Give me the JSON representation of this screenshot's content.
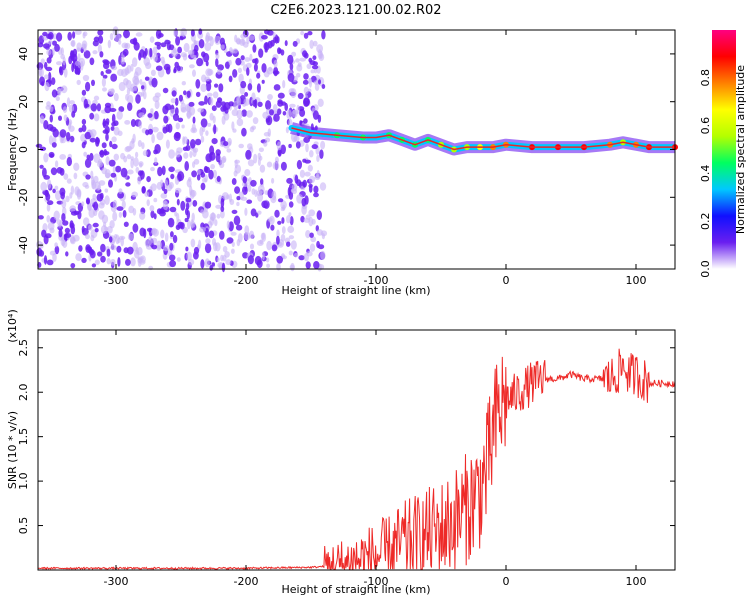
{
  "title": "C2E6.2023.121.00.02.R02",
  "colors": {
    "snr_line": "#ee2a28",
    "spectral_ridge": "#e8262a",
    "dots": "#6a1ff0",
    "dots_light": "#c8b2f6",
    "frame": "#000000"
  },
  "colorbar": {
    "label": "Normalized spectral amplitude",
    "ticks": [
      "0.0",
      "0.2",
      "0.4",
      "0.6",
      "0.8"
    ],
    "tick_values": [
      0.0,
      0.2,
      0.4,
      0.6,
      0.8
    ],
    "range": [
      0,
      1
    ],
    "colormap": [
      "#ffffff",
      "#6a1ff0",
      "#1010ff",
      "#00c8ff",
      "#00ff60",
      "#b4ff00",
      "#ffff00",
      "#ff8000",
      "#ff0000",
      "#ff0080"
    ]
  },
  "chart_data": [
    {
      "type": "heatmap",
      "title": "C2E6.2023.121.00.02.R02",
      "xlabel": "Height of straight line (km)",
      "ylabel": "Frequency (Hz)",
      "xlim": [
        -360,
        130
      ],
      "ylim": [
        -50,
        50
      ],
      "xticks": [
        -300,
        -200,
        -100,
        0,
        100
      ],
      "xtick_labels": [
        "-300",
        "-200",
        "-100",
        "0",
        "100"
      ],
      "yticks": [
        -40,
        -20,
        0,
        20,
        40
      ],
      "ytick_labels": [
        "-40",
        "-20",
        "0",
        "20",
        "40"
      ],
      "noise_region_x": [
        -360,
        -150
      ],
      "ridge": {
        "x": [
          -165,
          -150,
          -130,
          -110,
          -100,
          -90,
          -80,
          -70,
          -60,
          -50,
          -40,
          -30,
          -20,
          -10,
          0,
          20,
          40,
          60,
          80,
          90,
          100,
          110,
          130
        ],
        "y": [
          9,
          7,
          6,
          5,
          5,
          6,
          4,
          2,
          4,
          2,
          0,
          1,
          1,
          1,
          2,
          1,
          1,
          1,
          2,
          3,
          2,
          1,
          1
        ],
        "amplitude": [
          0.3,
          0.35,
          0.4,
          0.4,
          0.35,
          0.4,
          0.45,
          0.4,
          0.45,
          0.5,
          0.55,
          0.6,
          0.7,
          0.75,
          0.8,
          0.9,
          0.9,
          0.9,
          0.75,
          0.6,
          0.8,
          0.85,
          0.85
        ]
      },
      "grid": false
    },
    {
      "type": "line",
      "xlabel": "Height of straight line (km)",
      "ylabel": "SNR (10 * v/v)",
      "y_multiplier": "(x10⁴)",
      "xlim": [
        -360,
        130
      ],
      "ylim": [
        0,
        2.7
      ],
      "xticks": [
        -300,
        -200,
        -100,
        0,
        100
      ],
      "xtick_labels": [
        "-300",
        "-200",
        "-100",
        "0",
        "100"
      ],
      "yticks": [
        0.5,
        1.0,
        1.5,
        2.0,
        2.5
      ],
      "ytick_labels": [
        "0.5",
        "1.0",
        "1.5",
        "2.0",
        "2.5"
      ],
      "series": [
        {
          "x": [
            -360,
            -300,
            -250,
            -200,
            -150,
            -130,
            -120,
            -110,
            -100,
            -90,
            -80,
            -70,
            -60,
            -50,
            -40,
            -30,
            -20,
            -15,
            -10,
            -5,
            0,
            10,
            20,
            30,
            40,
            50,
            60,
            70,
            80,
            85,
            90,
            95,
            100,
            110,
            120,
            130
          ],
          "y": [
            0.02,
            0.02,
            0.02,
            0.02,
            0.03,
            0.05,
            0.08,
            0.12,
            0.15,
            0.2,
            0.3,
            0.35,
            0.4,
            0.45,
            0.55,
            0.7,
            0.9,
            1.1,
            1.5,
            1.8,
            1.9,
            2.0,
            2.1,
            2.15,
            2.15,
            2.2,
            2.15,
            2.15,
            2.15,
            2.2,
            2.3,
            2.2,
            2.2,
            2.1,
            2.1,
            2.1
          ]
        }
      ],
      "grid": false
    }
  ]
}
